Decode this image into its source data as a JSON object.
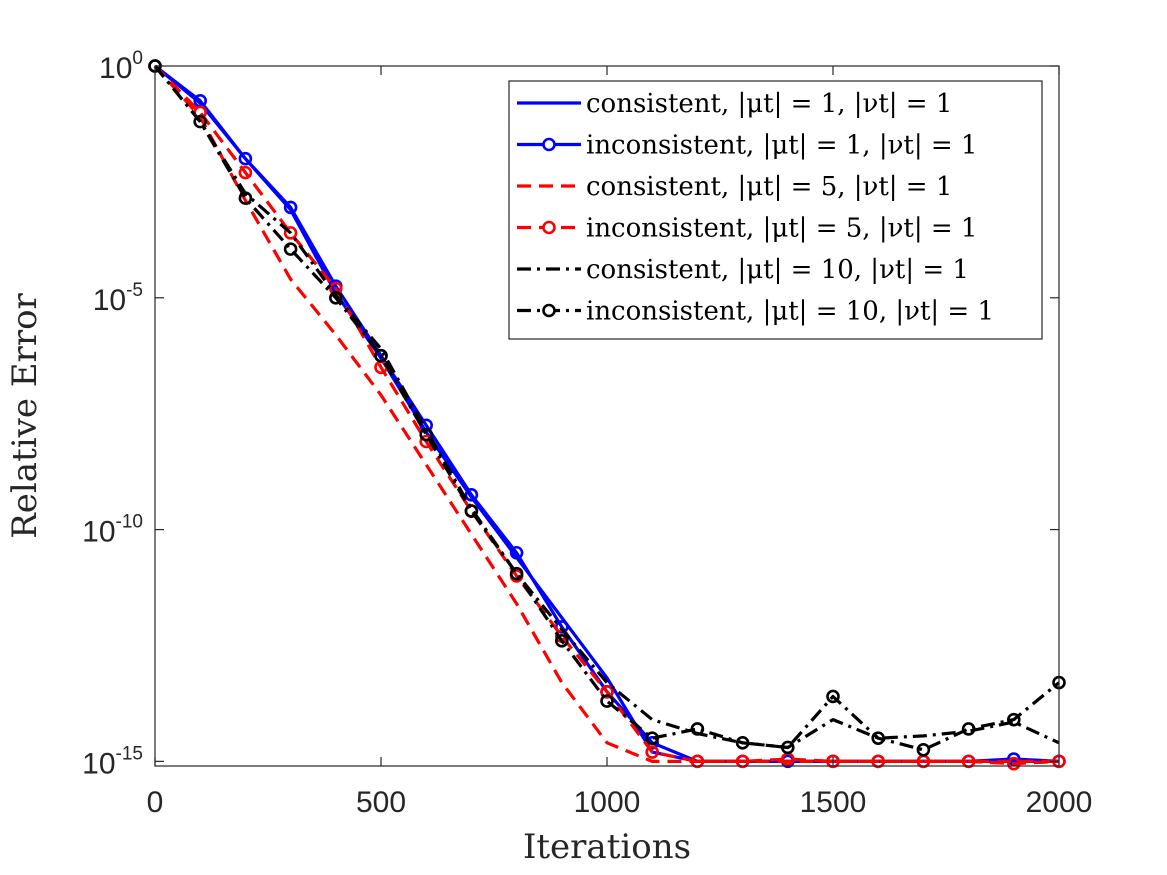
{
  "chart_data": {
    "type": "line",
    "title": "",
    "xlabel": "Iterations",
    "ylabel": "Relative Error",
    "xlim": [
      0,
      2000
    ],
    "ylim_log10": [
      -15.1,
      0
    ],
    "yscale": "log",
    "x_ticks": [
      {
        "value": 0,
        "label": "0"
      },
      {
        "value": 500,
        "label": "500"
      },
      {
        "value": 1000,
        "label": "1000"
      },
      {
        "value": 1500,
        "label": "1500"
      },
      {
        "value": 2000,
        "label": "2000"
      }
    ],
    "y_ticks": [
      {
        "log10": 0,
        "base": "10",
        "exp": "0"
      },
      {
        "log10": -5,
        "base": "10",
        "exp": "-5"
      },
      {
        "log10": -10,
        "base": "10",
        "exp": "-10"
      },
      {
        "log10": -15,
        "base": "10",
        "exp": "-15"
      }
    ],
    "legend_position": "top-right",
    "series": [
      {
        "name": "consistent, |μt| = 1, |νt| = 1",
        "color": "#0000ff",
        "dash": "solid",
        "marker": false,
        "x": [
          0,
          100,
          200,
          300,
          400,
          500,
          600,
          700,
          800,
          900,
          1000,
          1100,
          1200,
          1300,
          1400,
          1500,
          1600,
          1700,
          1800,
          1900,
          2000
        ],
        "log10_y": [
          0,
          -0.8,
          -2.0,
          -3.1,
          -4.9,
          -6.3,
          -7.9,
          -9.3,
          -10.6,
          -11.9,
          -13.2,
          -14.8,
          -15.0,
          -15.0,
          -15.0,
          -15.0,
          -15.0,
          -15.0,
          -15.0,
          -15.0,
          -15.0
        ]
      },
      {
        "name": "inconsistent, |μt| = 1, |νt| = 1",
        "color": "#0000ff",
        "dash": "solid",
        "marker": true,
        "x": [
          0,
          100,
          200,
          300,
          400,
          500,
          600,
          700,
          800,
          900,
          1000,
          1100,
          1200,
          1300,
          1400,
          1500,
          1600,
          1700,
          1800,
          1900,
          2000
        ],
        "log10_y": [
          0,
          -0.75,
          -2.0,
          -3.05,
          -4.75,
          -6.25,
          -7.75,
          -9.25,
          -10.5,
          -12.1,
          -13.5,
          -14.6,
          -15.0,
          -15.0,
          -15.0,
          -15.0,
          -15.0,
          -15.0,
          -15.0,
          -14.95,
          -15.0
        ]
      },
      {
        "name": "consistent, |μt| = 5, |νt| = 1",
        "color": "#ff0000",
        "dash": "dashed",
        "marker": false,
        "x": [
          0,
          100,
          200,
          300,
          400,
          500,
          600,
          700,
          800,
          900,
          1000,
          1100,
          1200,
          1300,
          1400,
          1500,
          1600,
          1700,
          1800,
          1900,
          2000
        ],
        "log10_y": [
          0,
          -1.1,
          -2.9,
          -4.6,
          -5.8,
          -7.1,
          -8.6,
          -10.1,
          -11.6,
          -13.3,
          -14.6,
          -15.0,
          -15.0,
          -15.0,
          -15.0,
          -15.0,
          -15.0,
          -15.0,
          -15.0,
          -15.0,
          -15.0
        ]
      },
      {
        "name": "inconsistent, |μt| = 5, |νt| = 1",
        "color": "#ff0000",
        "dash": "dashed",
        "marker": true,
        "x": [
          0,
          100,
          200,
          300,
          400,
          500,
          600,
          700,
          800,
          900,
          1000,
          1100,
          1200,
          1300,
          1400,
          1500,
          1600,
          1700,
          1800,
          1900,
          2000
        ],
        "log10_y": [
          0,
          -1.0,
          -2.3,
          -3.6,
          -4.8,
          -6.5,
          -8.1,
          -9.6,
          -11.0,
          -12.3,
          -13.5,
          -14.8,
          -15.0,
          -15.0,
          -14.95,
          -15.0,
          -15.0,
          -15.0,
          -15.0,
          -15.05,
          -15.0
        ]
      },
      {
        "name": "consistent, |μt| = 10, |νt| = 1",
        "color": "#000000",
        "dash": "dashdot",
        "marker": false,
        "x": [
          0,
          100,
          200,
          300,
          400,
          500,
          600,
          700,
          800,
          900,
          1000,
          1100,
          1200,
          1300,
          1400,
          1500,
          1600,
          1700,
          1800,
          1900,
          2000
        ],
        "log10_y": [
          0,
          -1.2,
          -2.75,
          -3.6,
          -4.95,
          -6.1,
          -7.85,
          -9.55,
          -10.95,
          -12.15,
          -13.3,
          -14.1,
          -14.4,
          -14.6,
          -14.7,
          -14.1,
          -14.5,
          -14.45,
          -14.35,
          -14.15,
          -14.6
        ]
      },
      {
        "name": "inconsistent, |μt| = 10, |νt| = 1",
        "color": "#000000",
        "dash": "dashdot",
        "marker": true,
        "x": [
          0,
          100,
          200,
          300,
          400,
          500,
          600,
          700,
          800,
          900,
          1000,
          1100,
          1200,
          1300,
          1400,
          1500,
          1600,
          1700,
          1800,
          1900,
          2000
        ],
        "log10_y": [
          0,
          -1.2,
          -2.85,
          -3.95,
          -5.0,
          -6.25,
          -7.95,
          -9.6,
          -10.95,
          -12.4,
          -13.7,
          -14.5,
          -14.3,
          -14.6,
          -14.7,
          -13.6,
          -14.5,
          -14.75,
          -14.3,
          -14.1,
          -13.3
        ]
      }
    ]
  }
}
